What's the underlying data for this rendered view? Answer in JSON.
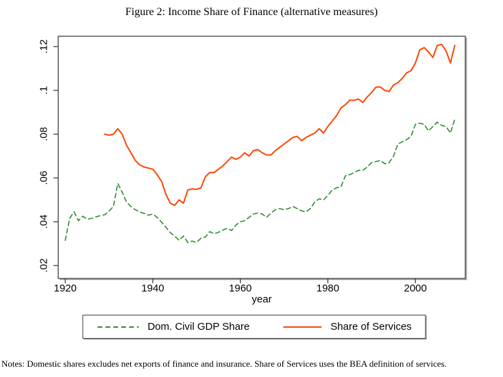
{
  "title": "Figure 2: Income Share of Finance (alternative measures)",
  "notes": "Notes: Domestic shares excludes net exports of finance and insurance. Share of Services uses the BEA definition of services.",
  "colors": {
    "green_series": "#2e8b2e",
    "orange_series": "#ff4500",
    "frame": "#3d3d3d",
    "frame_shadow": "#a0a0a0",
    "background": "#ffffff"
  },
  "legend": {
    "items": [
      {
        "label": "Dom. Civil GDP Share",
        "style": "dashed",
        "color": "#2e8b2e"
      },
      {
        "label": "Share of Services",
        "style": "solid",
        "color": "#ff4500"
      }
    ]
  },
  "chart_data": {
    "type": "line",
    "title": "Figure 2: Income Share of Finance (alternative measures)",
    "xlabel": "year",
    "ylabel": "",
    "xlim": [
      1918.4,
      2011.4
    ],
    "ylim": [
      0.0141,
      0.1247
    ],
    "grid": false,
    "legend_position": "bottom",
    "x_ticks": [
      1920,
      1940,
      1960,
      1980,
      2000
    ],
    "y_ticks": [
      {
        "label": ".02",
        "value": 0.02
      },
      {
        "label": ".04",
        "value": 0.04
      },
      {
        "label": ".06",
        "value": 0.06
      },
      {
        "label": ".08",
        "value": 0.08
      },
      {
        "label": ".1",
        "value": 0.1
      },
      {
        "label": ".12",
        "value": 0.12
      }
    ],
    "series": [
      {
        "name": "Dom. Civil GDP Share",
        "color": "#2e8b2e",
        "dash": true,
        "x": [
          1920,
          1921,
          1922,
          1923,
          1924,
          1925,
          1926,
          1927,
          1928,
          1929,
          1930,
          1931,
          1932,
          1933,
          1934,
          1935,
          1936,
          1937,
          1938,
          1939,
          1940,
          1941,
          1942,
          1943,
          1944,
          1945,
          1946,
          1947,
          1948,
          1949,
          1950,
          1951,
          1952,
          1953,
          1954,
          1955,
          1956,
          1957,
          1958,
          1959,
          1960,
          1961,
          1962,
          1963,
          1964,
          1965,
          1966,
          1967,
          1968,
          1969,
          1970,
          1971,
          1972,
          1973,
          1974,
          1975,
          1976,
          1977,
          1978,
          1979,
          1980,
          1981,
          1982,
          1983,
          1984,
          1985,
          1986,
          1987,
          1988,
          1989,
          1990,
          1991,
          1992,
          1993,
          1994,
          1995,
          1996,
          1997,
          1998,
          1999,
          2000,
          2001,
          2002,
          2003,
          2004,
          2005,
          2006,
          2007,
          2008,
          2009
        ],
        "values": [
          0.0315,
          0.0415,
          0.0445,
          0.0405,
          0.0425,
          0.0412,
          0.0415,
          0.0422,
          0.0428,
          0.0432,
          0.0448,
          0.047,
          0.0575,
          0.0535,
          0.049,
          0.047,
          0.0455,
          0.0445,
          0.0438,
          0.043,
          0.0435,
          0.042,
          0.0398,
          0.0375,
          0.035,
          0.0335,
          0.0315,
          0.0335,
          0.0305,
          0.0312,
          0.0305,
          0.0325,
          0.033,
          0.0355,
          0.0345,
          0.0352,
          0.0362,
          0.037,
          0.036,
          0.0385,
          0.04,
          0.0405,
          0.042,
          0.0435,
          0.044,
          0.0435,
          0.042,
          0.044,
          0.0455,
          0.046,
          0.0455,
          0.046,
          0.047,
          0.046,
          0.045,
          0.0445,
          0.046,
          0.049,
          0.0505,
          0.05,
          0.052,
          0.0545,
          0.0555,
          0.056,
          0.061,
          0.0615,
          0.0625,
          0.0635,
          0.0635,
          0.065,
          0.067,
          0.0675,
          0.068,
          0.0665,
          0.067,
          0.07,
          0.0755,
          0.0765,
          0.0775,
          0.079,
          0.0845,
          0.085,
          0.0845,
          0.0815,
          0.0835,
          0.0855,
          0.084,
          0.0835,
          0.0805,
          0.087
        ]
      },
      {
        "name": "Share of Services",
        "color": "#ff4500",
        "dash": false,
        "x": [
          1929,
          1930,
          1931,
          1932,
          1933,
          1934,
          1935,
          1936,
          1937,
          1938,
          1939,
          1940,
          1941,
          1942,
          1943,
          1944,
          1945,
          1946,
          1947,
          1948,
          1949,
          1950,
          1951,
          1952,
          1953,
          1954,
          1955,
          1956,
          1957,
          1958,
          1959,
          1960,
          1961,
          1962,
          1963,
          1964,
          1965,
          1966,
          1967,
          1968,
          1969,
          1970,
          1971,
          1972,
          1973,
          1974,
          1975,
          1976,
          1977,
          1978,
          1979,
          1980,
          1981,
          1982,
          1983,
          1984,
          1985,
          1986,
          1987,
          1988,
          1989,
          1990,
          1991,
          1992,
          1993,
          1994,
          1995,
          1996,
          1997,
          1998,
          1999,
          2000,
          2001,
          2002,
          2003,
          2004,
          2005,
          2006,
          2007,
          2008,
          2009
        ],
        "values": [
          0.08,
          0.0795,
          0.08,
          0.0825,
          0.08,
          0.075,
          0.0715,
          0.068,
          0.066,
          0.065,
          0.0645,
          0.064,
          0.0615,
          0.0585,
          0.0525,
          0.0485,
          0.0475,
          0.05,
          0.0485,
          0.0545,
          0.055,
          0.0548,
          0.0555,
          0.0605,
          0.0625,
          0.0625,
          0.064,
          0.0655,
          0.0675,
          0.0695,
          0.0685,
          0.0695,
          0.0715,
          0.07,
          0.0725,
          0.073,
          0.0715,
          0.0705,
          0.0705,
          0.0725,
          0.074,
          0.0755,
          0.077,
          0.0785,
          0.079,
          0.077,
          0.0785,
          0.0795,
          0.0805,
          0.0825,
          0.0805,
          0.0835,
          0.086,
          0.0885,
          0.092,
          0.0935,
          0.0955,
          0.0955,
          0.096,
          0.0945,
          0.097,
          0.099,
          0.1015,
          0.1015,
          0.1,
          0.0995,
          0.1025,
          0.1035,
          0.1055,
          0.108,
          0.109,
          0.1125,
          0.1185,
          0.1195,
          0.1175,
          0.115,
          0.1205,
          0.121,
          0.118,
          0.1125,
          0.1205
        ]
      }
    ]
  }
}
